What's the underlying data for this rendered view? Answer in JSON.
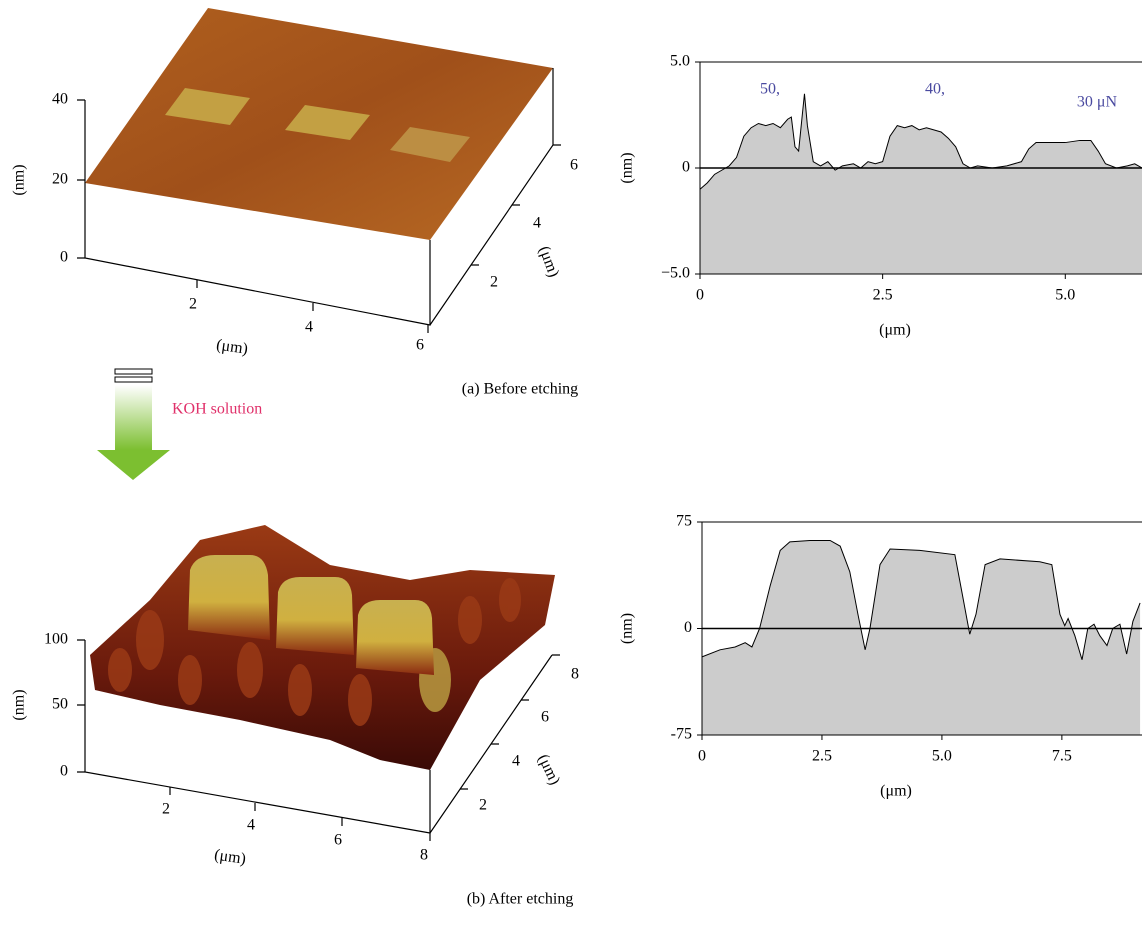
{
  "figure": {
    "arrow_label": "KOH solution",
    "panels": [
      {
        "caption": "(a) Before etching",
        "surface": {
          "z_label": "(nm)",
          "z_ticks": [
            0,
            20,
            40
          ],
          "x_label": "(μm)",
          "x_ticks": [
            2,
            4,
            6
          ],
          "y_label": "(μm)",
          "y_ticks": [
            2,
            4,
            6
          ]
        }
      },
      {
        "caption": "(b) After etching",
        "surface": {
          "z_label": "(nm)",
          "z_ticks": [
            0,
            50,
            100
          ],
          "x_label": "(μm)",
          "x_ticks": [
            2,
            4,
            6,
            8
          ],
          "y_label": "(μm)",
          "y_ticks": [
            2,
            4,
            6,
            8
          ]
        }
      }
    ]
  },
  "chart_data": [
    {
      "type": "area",
      "ylabel": "(nm)",
      "xlabel": "(μm)",
      "color": "#cccccc",
      "line_color": "#000000",
      "annotations": [
        "50,",
        "40,",
        "30 μN"
      ],
      "xlim": [
        0,
        6.05
      ],
      "ylim": [
        -5,
        5
      ],
      "xticks": [
        0,
        2.5,
        {
          "value": 5,
          "label": "5.0"
        }
      ],
      "yticks": [
        {
          "value": 5,
          "label": "5.0"
        },
        0,
        {
          "value": -5,
          "label": "−5.0"
        }
      ],
      "x": [
        0,
        0.1,
        0.2,
        0.3,
        0.4,
        0.5,
        0.6,
        0.7,
        0.8,
        0.9,
        1.0,
        1.1,
        1.2,
        1.25,
        1.3,
        1.35,
        1.4,
        1.43,
        1.47,
        1.55,
        1.65,
        1.75,
        1.85,
        1.95,
        2.1,
        2.2,
        2.3,
        2.4,
        2.5,
        2.6,
        2.7,
        2.8,
        2.9,
        3.0,
        3.1,
        3.2,
        3.3,
        3.4,
        3.5,
        3.6,
        3.7,
        3.8,
        4.0,
        4.2,
        4.4,
        4.5,
        4.6,
        4.8,
        5.0,
        5.2,
        5.35,
        5.45,
        5.55,
        5.7,
        5.85,
        5.95,
        6.05
      ],
      "values": [
        -1.0,
        -0.7,
        -0.3,
        -0.1,
        0.1,
        0.5,
        1.5,
        1.9,
        2.1,
        2.0,
        2.1,
        1.9,
        2.3,
        2.4,
        1.0,
        0.8,
        2.5,
        3.5,
        2.0,
        0.3,
        0.1,
        0.3,
        -0.1,
        0.1,
        0.2,
        0.0,
        0.3,
        0.2,
        0.3,
        1.5,
        2.0,
        1.9,
        2.0,
        1.8,
        1.9,
        1.8,
        1.7,
        1.4,
        1.0,
        0.2,
        0.0,
        0.1,
        0.0,
        0.1,
        0.3,
        0.9,
        1.2,
        1.2,
        1.2,
        1.3,
        1.3,
        0.8,
        0.2,
        0.0,
        0.1,
        0.2,
        0.0
      ]
    },
    {
      "type": "area",
      "ylabel": "(nm)",
      "xlabel": "(μm)",
      "color": "#cccccc",
      "line_color": "#000000",
      "xlim": [
        0,
        9.17
      ],
      "ylim": [
        -75,
        75
      ],
      "xticks": [
        0,
        2.5,
        {
          "value": 5,
          "label": "5.0"
        },
        7.5
      ],
      "yticks": [
        75,
        0,
        -75
      ],
      "x": [
        0,
        0.375,
        0.69,
        0.9,
        1.04,
        1.2,
        1.42,
        1.63,
        1.83,
        2.25,
        2.67,
        2.88,
        3.08,
        3.25,
        3.4,
        3.5,
        3.71,
        3.92,
        4.54,
        5.27,
        5.42,
        5.58,
        5.71,
        5.9,
        6.21,
        7.04,
        7.29,
        7.46,
        7.56,
        7.63,
        7.77,
        7.92,
        8.04,
        8.17,
        8.29,
        8.44,
        8.56,
        8.71,
        8.85,
        8.98,
        9.13
      ],
      "values": [
        -20,
        -15,
        -13,
        -10,
        -13,
        0,
        30,
        55,
        61,
        62,
        62,
        58,
        40,
        10,
        -15,
        0,
        45,
        56,
        55,
        52,
        25,
        -4,
        10,
        45,
        49,
        47,
        45,
        10,
        2,
        7,
        -5,
        -22,
        0,
        3,
        -5,
        -12,
        0,
        3,
        -18,
        5,
        18
      ]
    }
  ]
}
